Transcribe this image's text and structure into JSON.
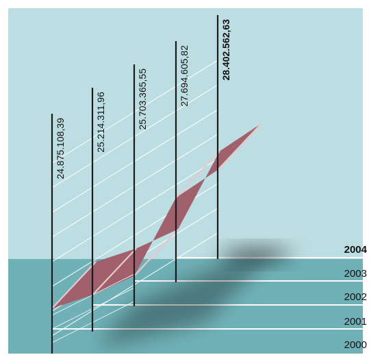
{
  "chart_data": {
    "type": "line",
    "title": "",
    "xlabel": "",
    "ylabel": "",
    "categories": [
      "2000",
      "2001",
      "2002",
      "2003",
      "2004"
    ],
    "values": [
      24875108.39,
      25214311.96,
      25703365.55,
      27694605.82,
      28402562.63
    ],
    "value_labels": [
      "24.875.108,39",
      "25.214.311,96",
      "25.703.365,55",
      "27.694.605,82",
      "28.402.562,63"
    ],
    "highlight_category": "2004",
    "colors": {
      "sky": "#bcdde1",
      "floor": "#6fb1b7",
      "ribbon": "#a0606c",
      "pole": "#1a1a1a",
      "guide": "#ffffff"
    }
  }
}
